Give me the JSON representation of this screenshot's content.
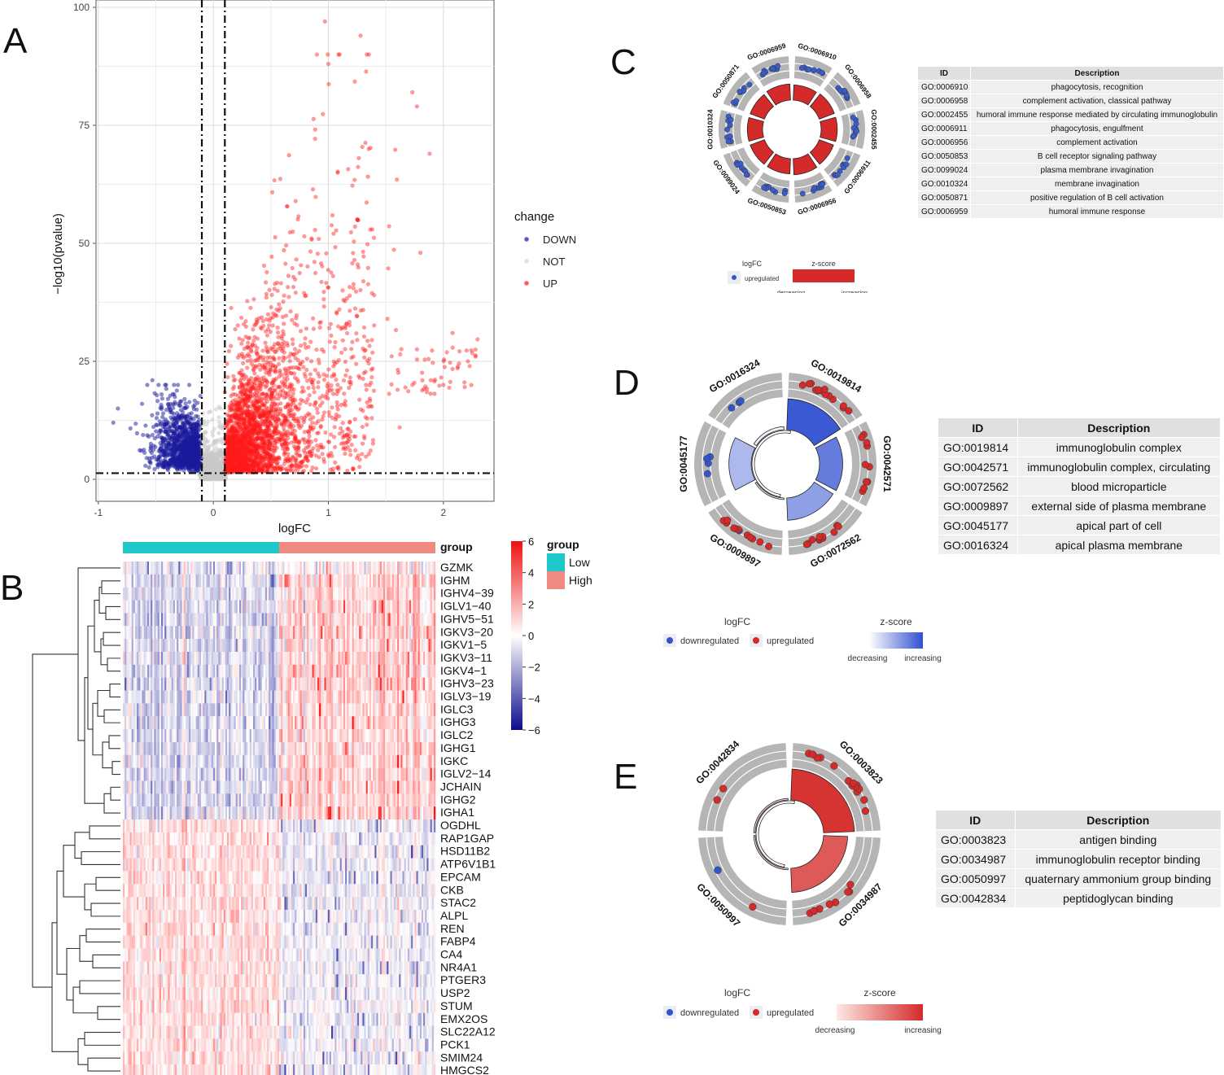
{
  "panels": {
    "a": "A",
    "b": "B",
    "c": "C",
    "d": "D",
    "e": "E"
  },
  "colors": {
    "down": "#1a1a9c",
    "not": "#c8c8c8",
    "up": "#ff1a1a",
    "low": "#1ec8c8",
    "high": "#f08a80",
    "go_red": "#d42a2a",
    "go_blue": "#3355cc",
    "ring": "#b5b5b5"
  },
  "chart_data": [
    {
      "type": "scatter",
      "panel": "A",
      "xlabel": "logFC",
      "ylabel": "−log10(pvalue)",
      "xlim": [
        -1,
        2.5
      ],
      "ylim": [
        0,
        100
      ],
      "xticks": [
        -1,
        0,
        1,
        2
      ],
      "yticks": [
        0,
        25,
        50,
        75,
        100
      ],
      "thresholds": {
        "logfc": [
          -0.1,
          0.1
        ],
        "neglog10p": 1.3
      },
      "legend": {
        "title": "change",
        "entries": [
          "DOWN",
          "NOT",
          "UP"
        ],
        "placement": "right"
      },
      "series": [
        {
          "name": "DOWN",
          "x_range": [
            -0.9,
            -0.1
          ],
          "y_range": [
            1.3,
            21
          ]
        },
        {
          "name": "NOT",
          "x_range": [
            -0.1,
            0.1
          ],
          "y_range": [
            0,
            21
          ]
        },
        {
          "name": "UP",
          "x_range": [
            0.1,
            2.3
          ],
          "y_range": [
            1.3,
            97
          ]
        }
      ]
    },
    {
      "type": "heatmap",
      "panel": "B",
      "annotation": {
        "title": "group",
        "levels": [
          "Low",
          "High"
        ]
      },
      "scale": {
        "ticks": [
          "6",
          "4",
          "2",
          "0",
          "−2",
          "−4",
          "−6"
        ]
      },
      "genes": [
        "GZMK",
        "IGHM",
        "IGHV4−39",
        "IGLV1−40",
        "IGHV5−51",
        "IGKV3−20",
        "IGKV1−5",
        "IGKV3−11",
        "IGKV4−1",
        "IGHV3−23",
        "IGLV3−19",
        "IGLC3",
        "IGHG3",
        "IGLC2",
        "IGHG1",
        "IGKC",
        "IGLV2−14",
        "JCHAIN",
        "IGHG2",
        "IGHA1",
        "OGDHL",
        "RAP1GAP",
        "HSD11B2",
        "ATP6V1B1",
        "EPCAM",
        "CKB",
        "STAC2",
        "ALPL",
        "REN",
        "FABP4",
        "CA4",
        "NR4A1",
        "PTGER3",
        "USP2",
        "STUM",
        "EMX2OS",
        "SLC22A12",
        "PCK1",
        "SMIM24",
        "HMGCS2"
      ],
      "up_in_high_count": 20
    },
    {
      "type": "table",
      "panel": "C",
      "columns": [
        "ID",
        "Description"
      ],
      "rows": [
        {
          "id": "GO:0006910",
          "desc": "phagocytosis, recognition",
          "z": 0.85,
          "genes": 9
        },
        {
          "id": "GO:0006958",
          "desc": "complement activation, classical pathway",
          "z": 0.9,
          "genes": 10
        },
        {
          "id": "GO:0002455",
          "desc": "humoral immune response mediated by circulating immunoglobulin",
          "z": 0.9,
          "genes": 10
        },
        {
          "id": "GO:0006911",
          "desc": "phagocytosis, engulfment",
          "z": 0.85,
          "genes": 9
        },
        {
          "id": "GO:0006956",
          "desc": "complement activation",
          "z": 0.9,
          "genes": 10
        },
        {
          "id": "GO:0050853",
          "desc": "B cell receptor signaling pathway",
          "z": 0.85,
          "genes": 9
        },
        {
          "id": "GO:0099024",
          "desc": "plasma membrane invagination",
          "z": 0.85,
          "genes": 9
        },
        {
          "id": "GO:0010324",
          "desc": "membrane invagination",
          "z": 0.85,
          "genes": 9
        },
        {
          "id": "GO:0050871",
          "desc": "positive regulation of B cell activation",
          "z": 0.85,
          "genes": 9
        },
        {
          "id": "GO:0006959",
          "desc": "humoral immune response",
          "z": 0.9,
          "genes": 10
        }
      ],
      "legend": {
        "logfc_title": "logFC",
        "logfc_up": "upregulated",
        "z_title": "z-score",
        "decreasing": "decreasing",
        "increasing": "increasing"
      }
    },
    {
      "type": "table",
      "panel": "D",
      "columns": [
        "ID",
        "Description"
      ],
      "rows": [
        {
          "id": "GO:0019814",
          "desc": "immunoglobulin complex",
          "z": 0.95
        },
        {
          "id": "GO:0042571",
          "desc": "immunoglobulin complex, circulating",
          "z": 0.75
        },
        {
          "id": "GO:0072562",
          "desc": "blood microparticle",
          "z": 0.55
        },
        {
          "id": "GO:0009897",
          "desc": "external side of plasma membrane",
          "z": 0.1
        },
        {
          "id": "GO:0045177",
          "desc": "apical part of cell",
          "z": 0.4
        },
        {
          "id": "GO:0016324",
          "desc": "apical plasma membrane",
          "z": 0.1
        }
      ],
      "legend": {
        "logfc_title": "logFC",
        "logfc_down": "downregulated",
        "logfc_up": "upregulated",
        "z_title": "z-score",
        "decreasing": "decreasing",
        "increasing": "increasing"
      }
    },
    {
      "type": "table",
      "panel": "E",
      "columns": [
        "ID",
        "Description"
      ],
      "rows": [
        {
          "id": "GO:0003823",
          "desc": "antigen binding",
          "z": 0.95
        },
        {
          "id": "GO:0034987",
          "desc": "immunoglobulin receptor binding",
          "z": 0.75
        },
        {
          "id": "GO:0050997",
          "desc": "quaternary ammonium group binding",
          "z": 0.1
        },
        {
          "id": "GO:0042834",
          "desc": "peptidoglycan binding",
          "z": 0.1
        }
      ],
      "legend": {
        "logfc_title": "logFC",
        "logfc_down": "downregulated",
        "logfc_up": "upregulated",
        "z_title": "z-score",
        "decreasing": "decreasing",
        "increasing": "increasing"
      }
    }
  ]
}
